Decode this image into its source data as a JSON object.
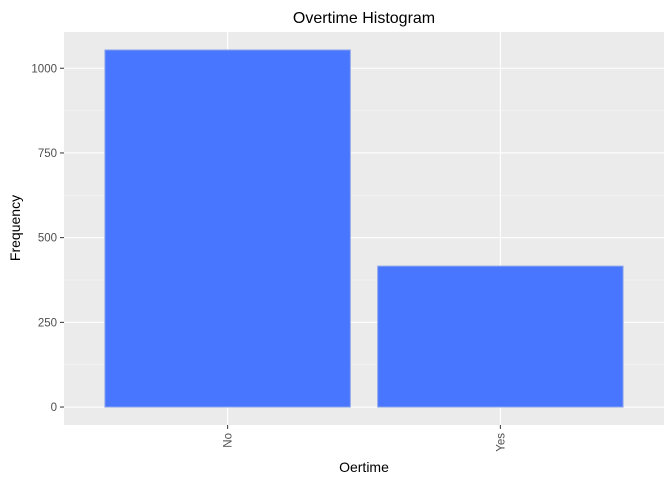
{
  "chart_data": {
    "type": "bar",
    "title": "Overtime Histogram",
    "xlabel": "Oertime",
    "ylabel": "Frequency",
    "categories": [
      "No",
      "Yes"
    ],
    "values": [
      1054,
      416
    ],
    "ylim": [
      -53,
      1107
    ],
    "yticks": [
      0,
      250,
      500,
      750,
      1000
    ],
    "ytick_labels": [
      "0",
      "250",
      "500",
      "750",
      "1000"
    ],
    "grid": true,
    "colors": {
      "bar_fill": "#4876FF",
      "bar_stroke": "#8FA8E8",
      "panel_bg": "#EBEBEB",
      "grid_major": "#FFFFFF",
      "grid_minor": "#F5F5F5"
    }
  }
}
